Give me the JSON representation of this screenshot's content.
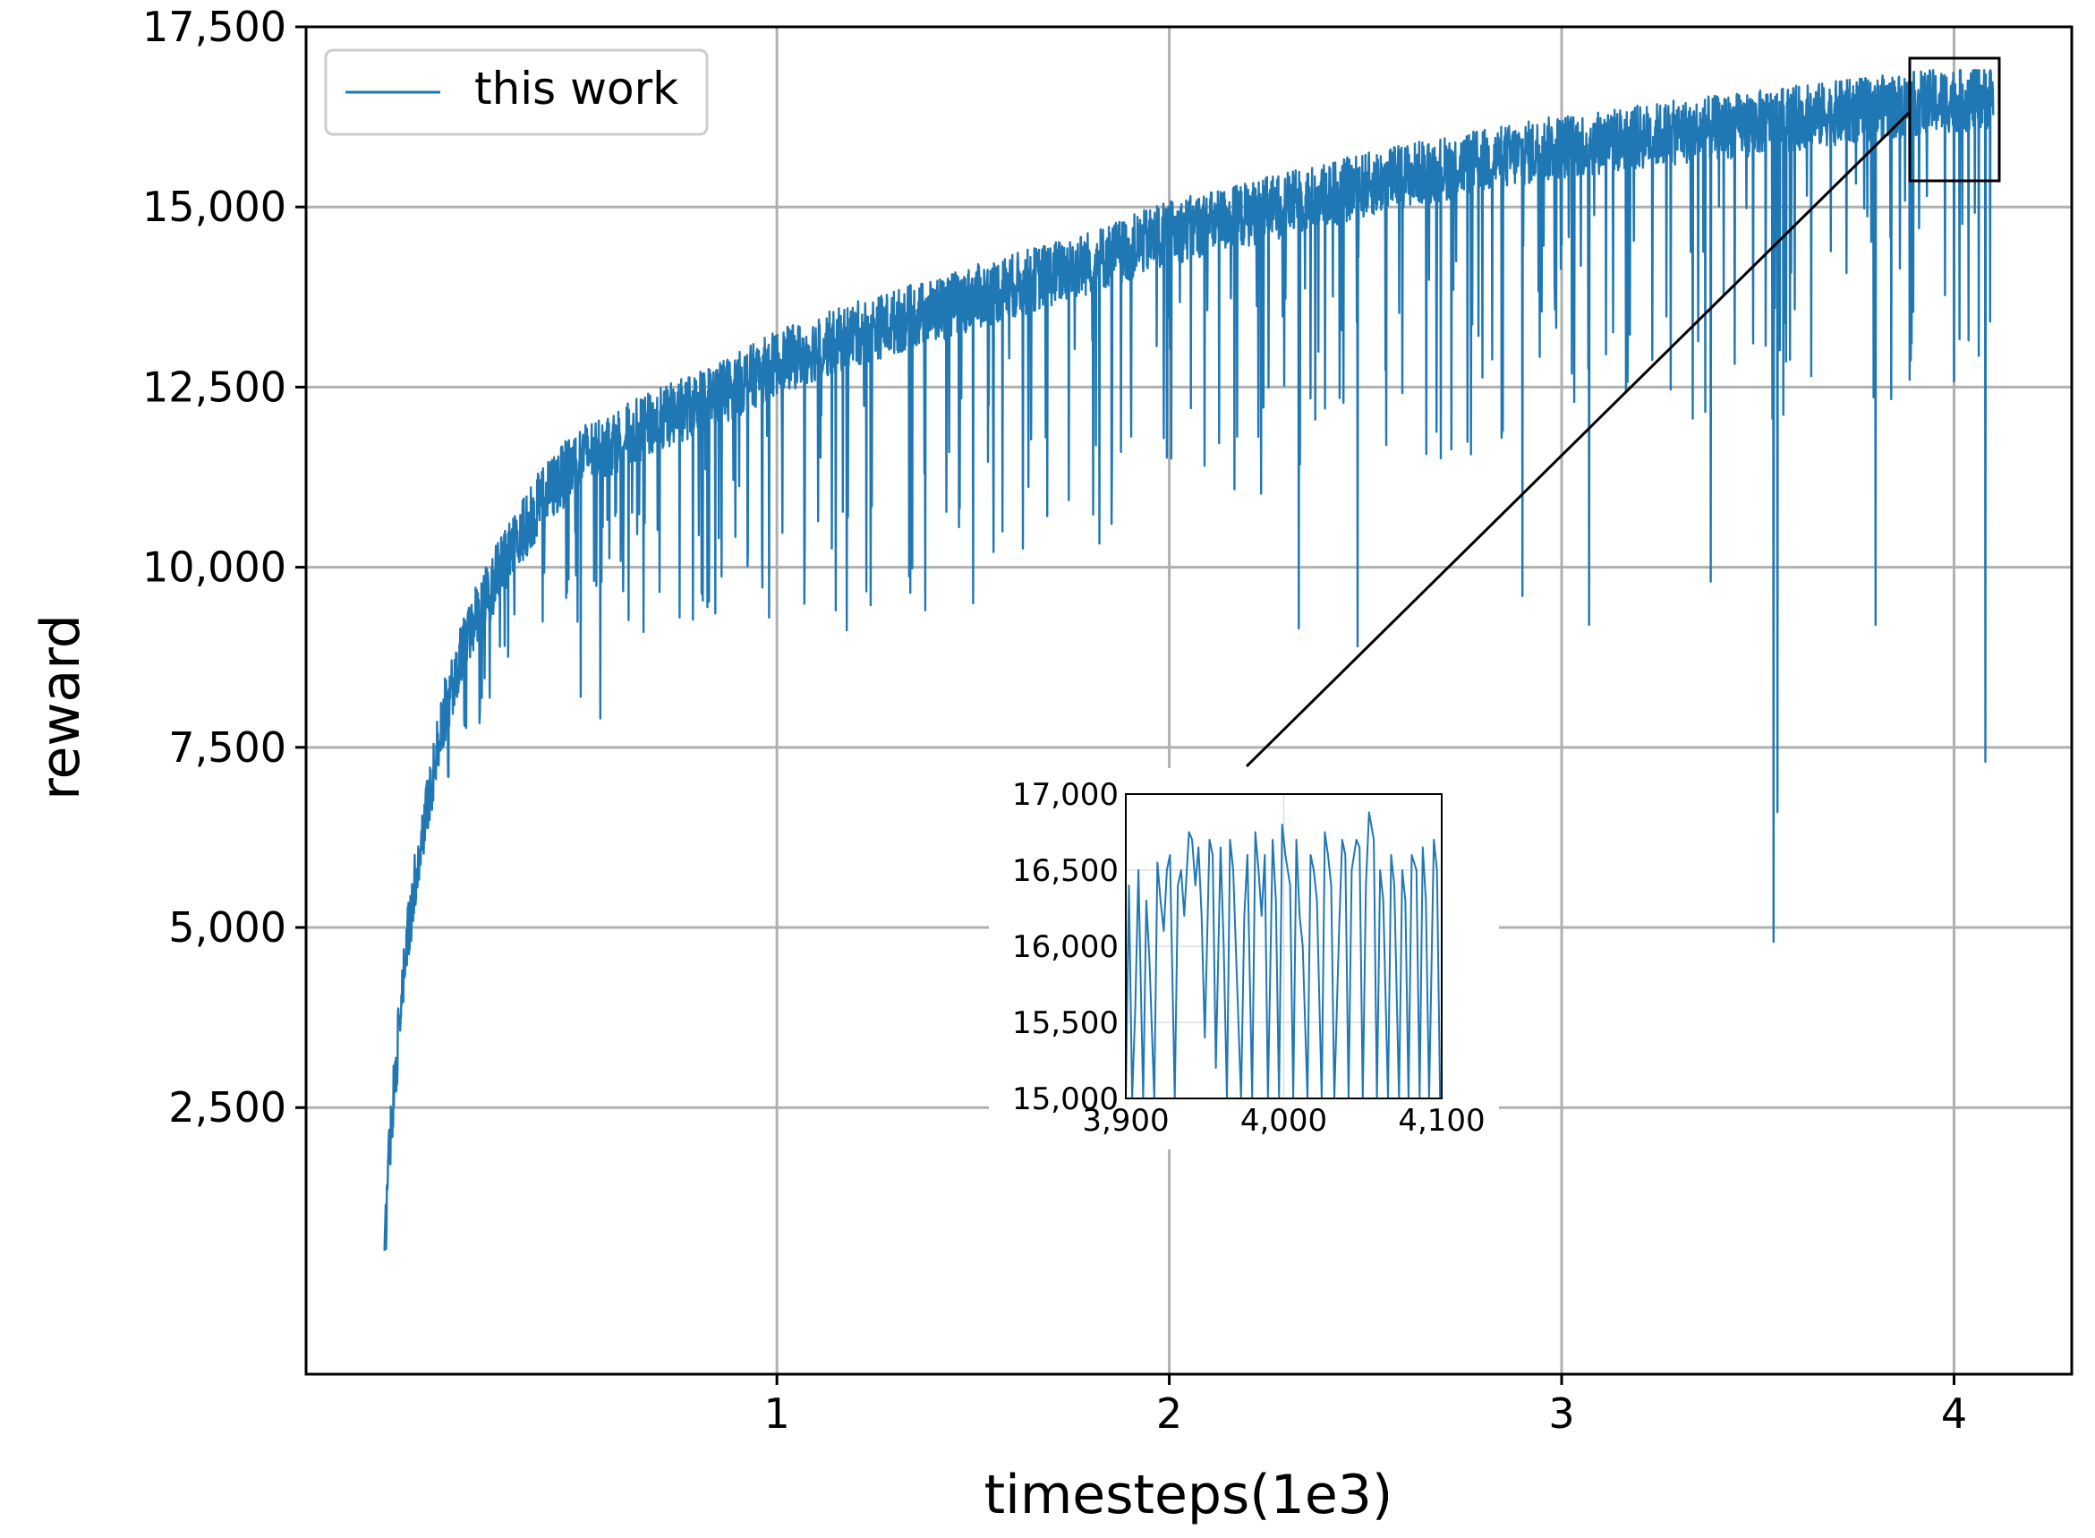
{
  "chart_data": [
    {
      "type": "line",
      "xlabel": "timesteps(1e3)",
      "ylabel": "reward",
      "xlim": [
        -0.2,
        4.3
      ],
      "ylim": [
        -1200,
        17500
      ],
      "xticks": [
        1,
        2,
        3,
        4
      ],
      "xtick_labels": [
        "1",
        "2",
        "3",
        "4"
      ],
      "yticks": [
        2500,
        5000,
        7500,
        10000,
        12500,
        15000,
        17500
      ],
      "ytick_labels": [
        "2,500",
        "5,000",
        "7,500",
        "10,000",
        "12,500",
        "15,000",
        "17,500"
      ],
      "grid": true,
      "legend_position": "upper-left",
      "series": [
        {
          "name": "this work",
          "color": "#1f77b4",
          "trend": {
            "x": [
              0.0,
              0.01,
              0.03,
              0.06,
              0.1,
              0.15,
              0.2,
              0.3,
              0.4,
              0.5,
              0.7,
              0.9,
              1.0,
              1.2,
              1.5,
              1.8,
              2.0,
              2.3,
              2.6,
              3.0,
              3.3,
              3.6,
              3.9,
              4.1
            ],
            "y": [
              200,
              1700,
              3000,
              4800,
              6300,
              7800,
              8800,
              9900,
              10800,
              11400,
              11900,
              12400,
              12700,
              13100,
              13600,
              14100,
              14500,
              14900,
              15300,
              15700,
              15900,
              16100,
              16300,
              16400
            ]
          },
          "dips": [
            {
              "x": 0.5,
              "y": 8200
            },
            {
              "x": 0.55,
              "y": 7900
            },
            {
              "x": 0.66,
              "y": 9100
            },
            {
              "x": 0.98,
              "y": 9300
            },
            {
              "x": 1.15,
              "y": 9400
            },
            {
              "x": 1.5,
              "y": 9500
            },
            {
              "x": 2.33,
              "y": 9150
            },
            {
              "x": 2.48,
              "y": 8900
            },
            {
              "x": 2.9,
              "y": 9600
            },
            {
              "x": 3.07,
              "y": 9200
            },
            {
              "x": 3.38,
              "y": 9800
            },
            {
              "x": 3.54,
              "y": 4800
            },
            {
              "x": 3.55,
              "y": 6600
            },
            {
              "x": 3.8,
              "y": 9200
            },
            {
              "x": 4.08,
              "y": 7300
            }
          ]
        }
      ]
    },
    {
      "type": "line",
      "xlim": [
        3900,
        4100
      ],
      "ylim": [
        15000,
        17000
      ],
      "xticks": [
        3900,
        4000,
        4100
      ],
      "xtick_labels": [
        "3,900",
        "4,000",
        "4,100"
      ],
      "yticks": [
        15000,
        15500,
        16000,
        16500,
        17000
      ],
      "ytick_labels": [
        "15,000",
        "15,500",
        "16,000",
        "16,500",
        "17,000"
      ],
      "grid": true,
      "series": [
        {
          "name": "this work",
          "color": "#1f77b4",
          "x": [
            3900,
            3902,
            3904,
            3906,
            3908,
            3911,
            3913,
            3915,
            3918,
            3920,
            3922,
            3924,
            3926,
            3928,
            3931,
            3933,
            3935,
            3937,
            3940,
            3942,
            3944,
            3946,
            3948,
            3950,
            3953,
            3955,
            3957,
            3960,
            3962,
            3964,
            3966,
            3968,
            3970,
            3973,
            3975,
            3977,
            3980,
            3982,
            3984,
            3986,
            3988,
            3990,
            3993,
            3995,
            3997,
            3999,
            4001,
            4004,
            4006,
            4008,
            4010,
            4012,
            4015,
            4017,
            4019,
            4021,
            4024,
            4026,
            4028,
            4030,
            4032,
            4035,
            4037,
            4039,
            4041,
            4043,
            4046,
            4048,
            4050,
            4052,
            4054,
            4057,
            4059,
            4061,
            4063,
            4066,
            4068,
            4070,
            4073,
            4075,
            4077,
            4079,
            4081,
            4084,
            4086,
            4088,
            4090,
            4092,
            4095,
            4097,
            4099
          ],
          "y": [
            15000,
            16400,
            15000,
            15600,
            16500,
            15000,
            16300,
            15900,
            15000,
            16550,
            16300,
            16100,
            16500,
            16600,
            15000,
            16400,
            16500,
            16200,
            16750,
            16700,
            16400,
            16650,
            16200,
            15400,
            16700,
            16600,
            15200,
            16650,
            16000,
            15000,
            16700,
            16500,
            15900,
            15000,
            16200,
            16600,
            15000,
            16750,
            16500,
            16200,
            16600,
            15000,
            16700,
            16300,
            15000,
            16800,
            16600,
            16400,
            15000,
            16700,
            16200,
            16000,
            15000,
            16600,
            16500,
            16300,
            15000,
            16750,
            16600,
            16400,
            15000,
            16100,
            16700,
            16600,
            15000,
            16500,
            16700,
            16650,
            15000,
            16400,
            16880,
            16700,
            15000,
            16500,
            16300,
            15000,
            16600,
            16400,
            15000,
            16500,
            16300,
            15000,
            16600,
            16500,
            15000,
            16650,
            16300,
            15000,
            16700,
            16500,
            15000
          ]
        }
      ]
    }
  ]
}
